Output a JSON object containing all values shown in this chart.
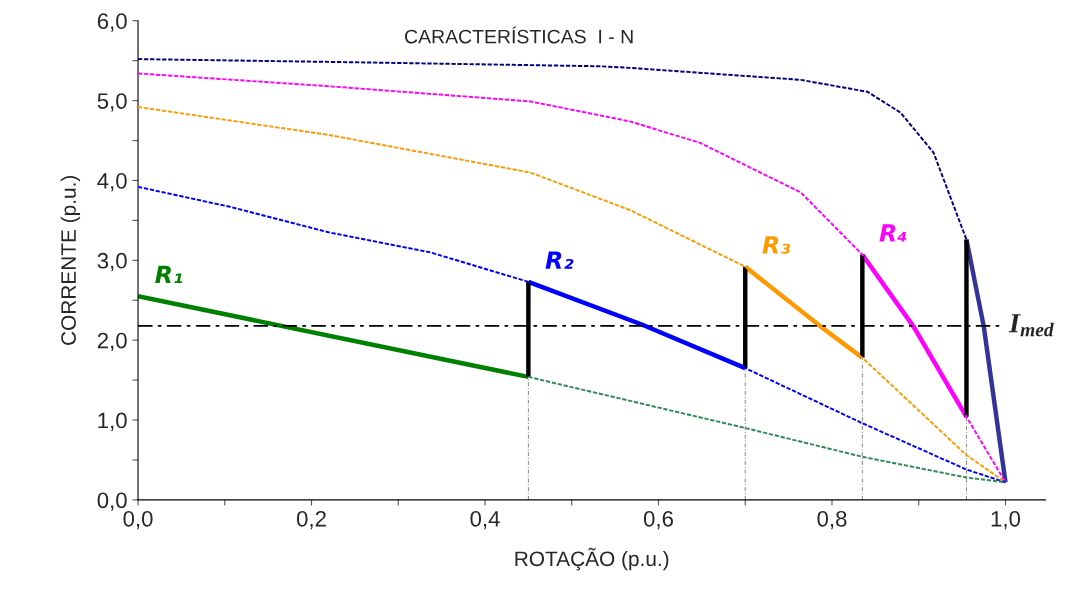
{
  "chart_data": {
    "type": "line",
    "title": "CARACTERÍSTICAS  I - N",
    "xlabel": "ROTAÇÃO (p.u.)",
    "ylabel": "CORRENTE (p.u.)",
    "xlim": [
      0,
      1.046
    ],
    "ylim": [
      0,
      6.0
    ],
    "xticks": [
      {
        "value": 0,
        "label": "0,0"
      },
      {
        "value": 0.1,
        "label": null
      },
      {
        "value": 0.2,
        "label": "0,2"
      },
      {
        "value": 0.3,
        "label": null
      },
      {
        "value": 0.4,
        "label": "0,4"
      },
      {
        "value": 0.5,
        "label": null
      },
      {
        "value": 0.6,
        "label": "0,6"
      },
      {
        "value": 0.7,
        "label": null
      },
      {
        "value": 0.8,
        "label": "0,8"
      },
      {
        "value": 0.9,
        "label": null
      },
      {
        "value": 1.0,
        "label": "1,0"
      }
    ],
    "yticks": [
      {
        "value": 0,
        "label": "0,0"
      },
      {
        "value": 0.5,
        "label": null
      },
      {
        "value": 1,
        "label": "1,0"
      },
      {
        "value": 1.5,
        "label": null
      },
      {
        "value": 2,
        "label": "2,0"
      },
      {
        "value": 2.5,
        "label": null
      },
      {
        "value": 3,
        "label": "3,0"
      },
      {
        "value": 3.5,
        "label": null
      },
      {
        "value": 4,
        "label": "4,0"
      },
      {
        "value": 4.5,
        "label": null
      },
      {
        "value": 5,
        "label": "5,0"
      },
      {
        "value": 5.5,
        "label": null
      },
      {
        "value": 6,
        "label": "6,0"
      }
    ],
    "ref_lines": [
      {
        "axis": "y",
        "value": 2.18,
        "label": "I$_{med}$",
        "color": "#000000",
        "line_style": "dashdot"
      }
    ],
    "series": [
      {
        "color": "#2e8b57",
        "line_style": "dashed",
        "x": [
          0.45,
          0.7,
          0.835,
          0.955,
          1.0
        ],
        "values": [
          1.54,
          0.9,
          0.54,
          0.28,
          0.22
        ]
      },
      {
        "color": "#0000ff",
        "line_style": "dashed",
        "x": [
          0,
          0.106,
          0.22,
          0.337,
          0.45,
          0.58,
          0.7,
          0.835,
          0.955,
          1.0
        ],
        "values": [
          3.92,
          3.67,
          3.35,
          3.1,
          2.73,
          2.2,
          1.65,
          0.96,
          0.38,
          0.22
        ]
      },
      {
        "color": "#ff9900",
        "line_style": "dashed",
        "x": [
          0,
          0.22,
          0.452,
          0.567,
          0.7,
          0.787,
          0.835,
          0.955,
          1.0
        ],
        "values": [
          4.92,
          4.57,
          4.1,
          3.63,
          2.92,
          2.17,
          1.78,
          0.56,
          0.22
        ]
      },
      {
        "color": "#ff00ff",
        "line_style": "dashed",
        "x": [
          0,
          0.22,
          0.452,
          0.567,
          0.648,
          0.764,
          0.835,
          0.894,
          0.955,
          1.0
        ],
        "values": [
          5.34,
          5.18,
          4.99,
          4.74,
          4.47,
          3.85,
          3.07,
          2.17,
          1.04,
          0.22
        ]
      },
      {
        "color": "#000080",
        "line_style": "dashed",
        "x": [
          0,
          0.25,
          0.533,
          0.567,
          0.764,
          0.841,
          0.879,
          0.917,
          0.955
        ],
        "values": [
          5.52,
          5.48,
          5.43,
          5.41,
          5.26,
          5.11,
          4.85,
          4.35,
          3.26
        ]
      },
      {
        "name": "R₁",
        "color": "#008000",
        "line_style": "solid",
        "x": [
          0,
          0.45
        ],
        "values": [
          2.55,
          1.54
        ]
      },
      {
        "name": "R₂",
        "color": "#0000ff",
        "line_style": "solid",
        "x": [
          0.45,
          0.58,
          0.7
        ],
        "values": [
          2.73,
          2.2,
          1.65
        ]
      },
      {
        "name": "R₃",
        "color": "#ff9900",
        "line_style": "solid",
        "x": [
          0.7,
          0.787,
          0.835
        ],
        "values": [
          2.92,
          2.17,
          1.78
        ]
      },
      {
        "name": "R₄",
        "color": "#ff00ff",
        "line_style": "solid",
        "x": [
          0.835,
          0.894,
          0.955
        ],
        "values": [
          3.07,
          2.17,
          1.04
        ]
      },
      {
        "color": "#333399",
        "line_style": "solid",
        "x": [
          0.955,
          0.975,
          1.0
        ],
        "values": [
          3.26,
          2.17,
          0.22
        ]
      },
      {
        "color": "#000000",
        "line_style": "solid",
        "x": [
          0.45,
          0.45
        ],
        "values": [
          1.54,
          2.73
        ]
      },
      {
        "color": "#000000",
        "line_style": "solid",
        "x": [
          0.7,
          0.7
        ],
        "values": [
          1.65,
          2.92
        ]
      },
      {
        "color": "#000000",
        "line_style": "solid",
        "x": [
          0.835,
          0.835
        ],
        "values": [
          1.78,
          3.07
        ]
      },
      {
        "color": "#000000",
        "line_style": "solid",
        "x": [
          0.955,
          0.955
        ],
        "values": [
          1.04,
          3.26
        ]
      },
      {
        "color": "#808080",
        "line_style": "dotted",
        "x": [
          0.45,
          0.45
        ],
        "values": [
          0,
          1.54
        ]
      },
      {
        "color": "#808080",
        "line_style": "dotted",
        "x": [
          0.7,
          0.7
        ],
        "values": [
          0,
          1.65
        ]
      },
      {
        "color": "#808080",
        "line_style": "dotted",
        "x": [
          0.835,
          0.835
        ],
        "values": [
          0,
          1.78
        ]
      },
      {
        "color": "#808080",
        "line_style": "dotted",
        "x": [
          0.955,
          0.955
        ],
        "values": [
          0,
          1.04
        ]
      }
    ]
  }
}
